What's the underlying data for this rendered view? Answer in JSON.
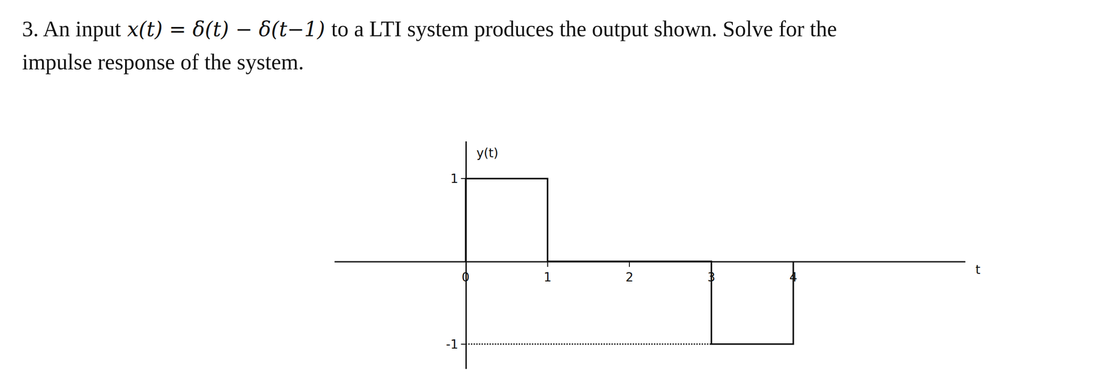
{
  "problem": {
    "number": "3.",
    "before": "An input",
    "formula": "x(t) = δ(t) − δ(t−1)",
    "after": "to a LTI system produces the output shown. Solve for the",
    "line2": "impulse response of the system."
  },
  "chart_data": {
    "type": "line",
    "xlabel": "t",
    "ylabel": "y(t)",
    "xlim": [
      -1.6,
      6.1
    ],
    "ylim": [
      -1.3,
      1.45
    ],
    "xticks": [
      0,
      1,
      2,
      3,
      4
    ],
    "yticks": [
      -1,
      1
    ],
    "grid": false,
    "series": [
      {
        "x": [
          0,
          0,
          1,
          1,
          3,
          3,
          4,
          4
        ],
        "values": [
          0,
          1,
          1,
          0,
          0,
          -1,
          -1,
          0
        ],
        "color": "#111111",
        "line_style": "solid"
      },
      {
        "x": [
          0,
          3
        ],
        "values": [
          -1,
          -1
        ],
        "color": "#111111",
        "line_style": "dotted"
      }
    ]
  }
}
